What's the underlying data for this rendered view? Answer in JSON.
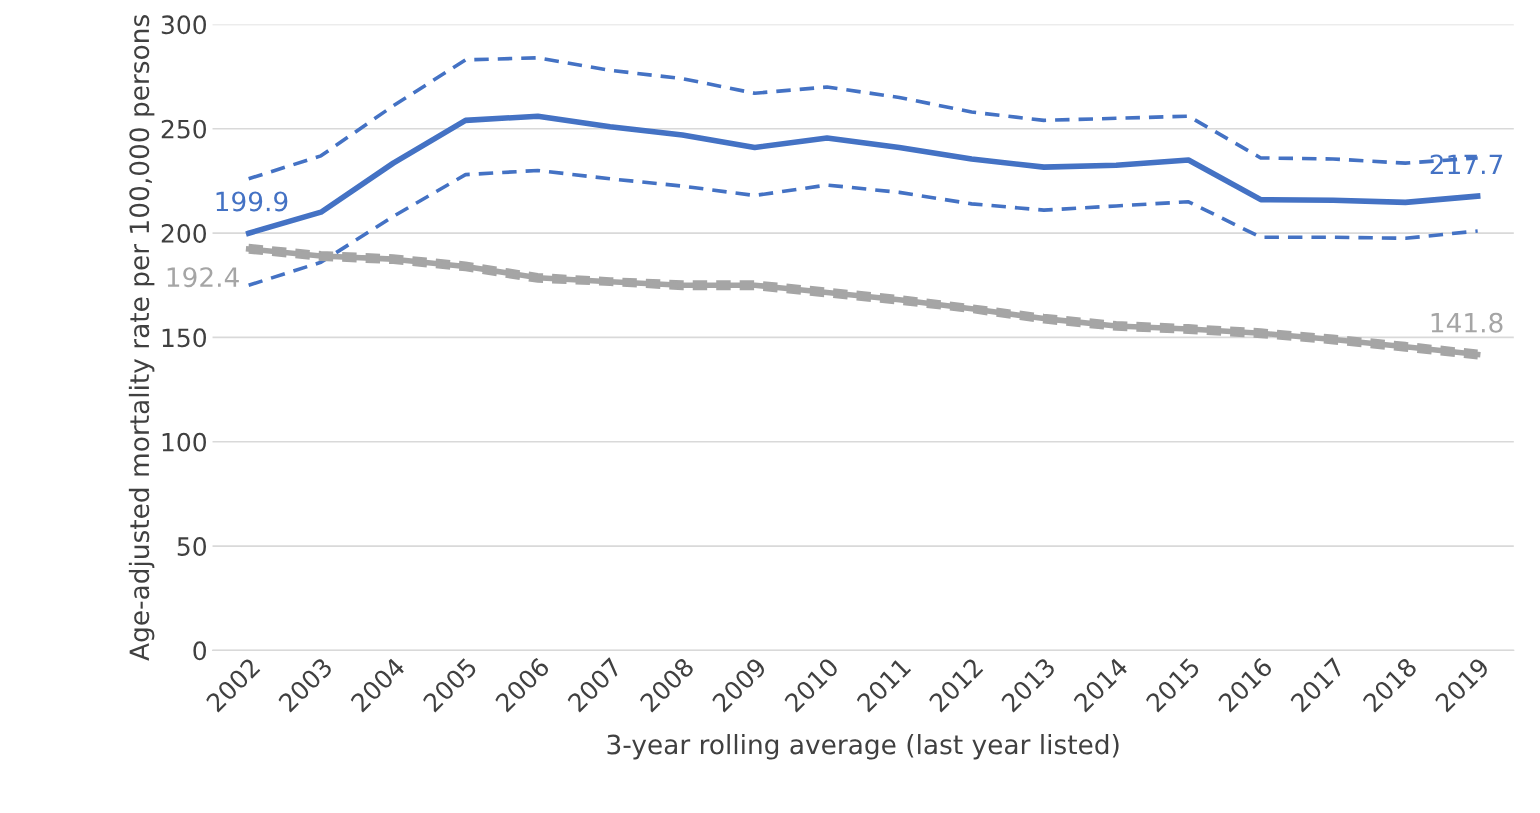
{
  "chart_data": {
    "type": "line",
    "categories": [
      "2002",
      "2003",
      "2004",
      "2005",
      "2006",
      "2007",
      "2008",
      "2009",
      "2010",
      "2011",
      "2012",
      "2013",
      "2014",
      "2015",
      "2016",
      "2017",
      "2018",
      "2019"
    ],
    "xlabel": "3-year rolling average (last year listed)",
    "ylabel": "Age-adjusted mortality rate per 100,000 persons",
    "ylim": [
      0,
      300
    ],
    "yticks": [
      0,
      50,
      100,
      150,
      200,
      250,
      300
    ],
    "grid": "y",
    "legend": false,
    "series": [
      {
        "color": "#4472c4",
        "line_style": "dashed",
        "values": [
          226,
          237,
          261,
          283,
          284,
          278,
          274,
          267,
          270,
          265,
          258,
          254,
          255,
          256,
          236,
          235.5,
          233.5,
          236
        ]
      },
      {
        "color": "#4472c4",
        "line_style": "dashed",
        "values": [
          175,
          186,
          208,
          228,
          230,
          226,
          222.5,
          218,
          223,
          219.5,
          214,
          211,
          213,
          215,
          198,
          198,
          197.5,
          201
        ]
      },
      {
        "color": "#a5a5a5",
        "line_style": "dashed",
        "values": [
          194,
          190.5,
          189,
          185.5,
          180,
          178,
          176.5,
          176.5,
          173,
          169.5,
          165,
          160.5,
          157,
          155.5,
          153.5,
          150.5,
          147,
          143.3
        ]
      },
      {
        "color": "#a5a5a5",
        "line_style": "dashed",
        "values": [
          191,
          187.5,
          186,
          182.5,
          177,
          175.5,
          173.5,
          173.5,
          170,
          166.5,
          162.5,
          157.5,
          154,
          152.5,
          150.5,
          147.5,
          144,
          140.3
        ]
      },
      {
        "color": "#4472c4",
        "line_style": "solid",
        "values": [
          199.9,
          210,
          233.5,
          254,
          256,
          251,
          247,
          241,
          245.5,
          241,
          235.5,
          231.6,
          232.5,
          235,
          216,
          215.7,
          214.7,
          217.7
        ],
        "value_labels": [
          "199.9",
          null,
          null,
          null,
          null,
          null,
          null,
          null,
          null,
          null,
          null,
          null,
          null,
          null,
          null,
          null,
          null,
          "217.7"
        ]
      },
      {
        "color": "#a5a5a5",
        "line_style": "solid",
        "values": [
          192.4,
          189,
          187.5,
          184,
          178.6,
          176.7,
          175,
          175,
          171.5,
          168,
          163.7,
          159,
          155.5,
          154,
          152,
          149,
          145.5,
          141.8
        ],
        "value_labels": [
          "192.4",
          null,
          null,
          null,
          null,
          null,
          null,
          null,
          null,
          null,
          null,
          null,
          null,
          null,
          null,
          null,
          null,
          "141.8"
        ]
      }
    ]
  }
}
